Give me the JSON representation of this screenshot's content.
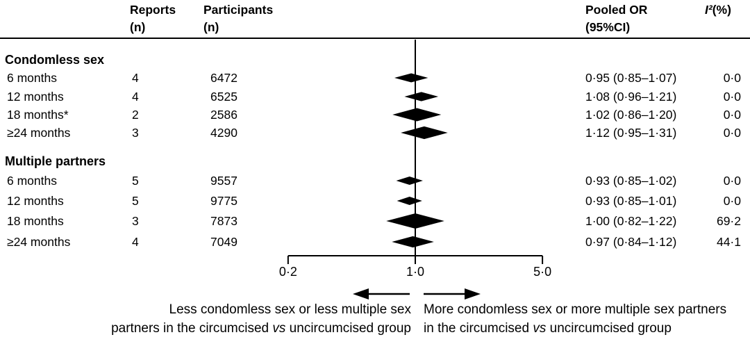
{
  "columns": {
    "reports": {
      "line1": "Reports",
      "line2": "(n)"
    },
    "participants": {
      "line1": "Participants",
      "line2": "(n)"
    },
    "pooled": {
      "line1": "Pooled OR",
      "line2": "(95%CI)"
    },
    "i2": {
      "symbol": "I²",
      "rest": "(%)"
    }
  },
  "rows": [
    {
      "type": "group",
      "label": "Condomless sex"
    },
    {
      "type": "data",
      "label": "6 months",
      "reports": "4",
      "participants": "6472",
      "pooled": "0·95 (0·85–1·07)",
      "i2": "0·0"
    },
    {
      "type": "data",
      "label": "12 months",
      "reports": "4",
      "participants": "6525",
      "pooled": "1·08 (0·96–1·21)",
      "i2": "0·0"
    },
    {
      "type": "data",
      "label": "18 months*",
      "reports": "2",
      "participants": "2586",
      "pooled": "1·02 (0·86–1·20)",
      "i2": "0·0"
    },
    {
      "type": "data",
      "label": "≥24 months",
      "reports": "3",
      "participants": "4290",
      "pooled": "1·12 (0·95–1·31)",
      "i2": "0·0"
    },
    {
      "type": "group",
      "label": "Multiple partners"
    },
    {
      "type": "data",
      "label": "6 months",
      "reports": "5",
      "participants": "9557",
      "pooled": "0·93 (0·85–1·02)",
      "i2": "0·0"
    },
    {
      "type": "data",
      "label": "12 months",
      "reports": "5",
      "participants": "9775",
      "pooled": "0·93 (0·85–1·01)",
      "i2": "0·0"
    },
    {
      "type": "data",
      "label": "18 months",
      "reports": "3",
      "participants": "7873",
      "pooled": "1·00 (0·82–1·22)",
      "i2": "69·2"
    },
    {
      "type": "data",
      "label": "≥24 months",
      "reports": "4",
      "participants": "7049",
      "pooled": "0·97 (0·84–1·12)",
      "i2": "44·1"
    }
  ],
  "axis": {
    "tick_labels": [
      "0·2",
      "1·0",
      "5·0"
    ]
  },
  "footer": {
    "left": {
      "line1": "Less condomless sex or less multiple sex",
      "line2": [
        "partners in the circumcised ",
        "vs",
        " uncircumcised group"
      ]
    },
    "right": {
      "line1": "More condomless sex or more multiple sex partners",
      "line2": [
        "in the circumcised ",
        "vs",
        " uncircumcised group"
      ]
    }
  },
  "colors": {
    "ink": "#000000",
    "background": "#ffffff"
  },
  "chart_data": {
    "type": "forest",
    "x_scale": "log",
    "x_ticks": [
      0.2,
      1.0,
      5.0
    ],
    "x_range": [
      0.2,
      5.0
    ],
    "reference_line": 1.0,
    "effect_measure": "Odds ratio",
    "groups": [
      {
        "name": "Condomless sex",
        "rows": [
          {
            "label": "6 months",
            "reports": 4,
            "participants": 6472,
            "or": 0.95,
            "ci_low": 0.85,
            "ci_high": 1.07,
            "i2_pct": 0.0
          },
          {
            "label": "12 months",
            "reports": 4,
            "participants": 6525,
            "or": 1.08,
            "ci_low": 0.96,
            "ci_high": 1.21,
            "i2_pct": 0.0
          },
          {
            "label": "18 months*",
            "reports": 2,
            "participants": 2586,
            "or": 1.02,
            "ci_low": 0.86,
            "ci_high": 1.2,
            "i2_pct": 0.0
          },
          {
            "label": "≥24 months",
            "reports": 3,
            "participants": 4290,
            "or": 1.12,
            "ci_low": 0.95,
            "ci_high": 1.31,
            "i2_pct": 0.0
          }
        ]
      },
      {
        "name": "Multiple partners",
        "rows": [
          {
            "label": "6 months",
            "reports": 5,
            "participants": 9557,
            "or": 0.93,
            "ci_low": 0.85,
            "ci_high": 1.02,
            "i2_pct": 0.0
          },
          {
            "label": "12 months",
            "reports": 5,
            "participants": 9775,
            "or": 0.93,
            "ci_low": 0.85,
            "ci_high": 1.01,
            "i2_pct": 0.0
          },
          {
            "label": "18 months",
            "reports": 3,
            "participants": 7873,
            "or": 1.0,
            "ci_low": 0.82,
            "ci_high": 1.22,
            "i2_pct": 69.2
          },
          {
            "label": "≥24 months",
            "reports": 4,
            "participants": 7049,
            "or": 0.97,
            "ci_low": 0.84,
            "ci_high": 1.12,
            "i2_pct": 44.1
          }
        ]
      }
    ]
  }
}
